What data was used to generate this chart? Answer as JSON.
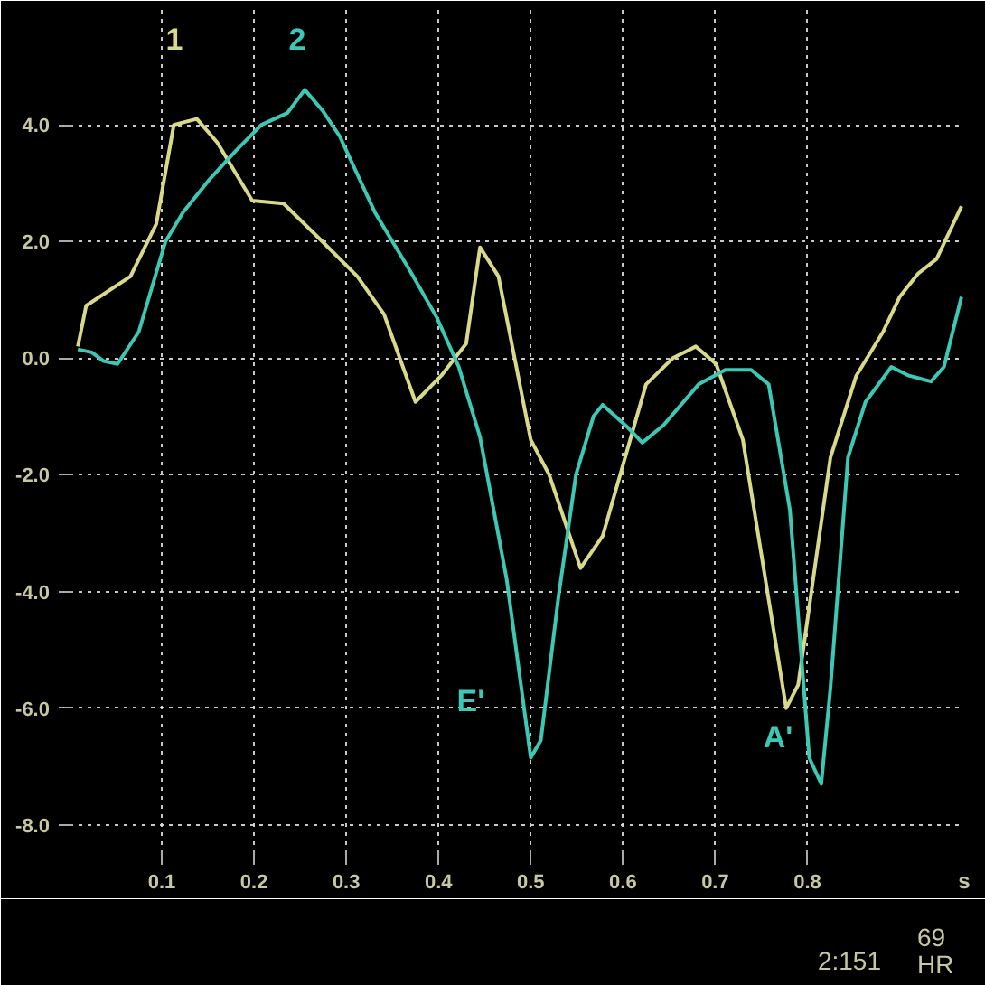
{
  "chart_data": {
    "type": "line",
    "xlabel": "s",
    "xlim": [
      0,
      0.97
    ],
    "ylim": [
      -8.5,
      6
    ],
    "xticks": [
      0.1,
      0.2,
      0.3,
      0.4,
      0.5,
      0.6,
      0.7,
      0.8
    ],
    "yticks": [
      {
        "value": 4,
        "label": "4.0"
      },
      {
        "value": 2,
        "label": "2.0"
      },
      {
        "value": 0,
        "label": "0.0"
      },
      {
        "value": -2,
        "label": "-2.0"
      },
      {
        "value": -4,
        "label": "-4.0"
      },
      {
        "value": -6,
        "label": "-6.0"
      },
      {
        "value": -8,
        "label": "-8.0"
      }
    ],
    "grid": true,
    "line_style": "solid",
    "series": [
      {
        "color": "#d9d98a",
        "x": [
          0.009,
          0.018,
          0.066,
          0.094,
          0.113,
          0.138,
          0.16,
          0.198,
          0.232,
          0.274,
          0.312,
          0.341,
          0.375,
          0.403,
          0.43,
          0.445,
          0.465,
          0.5,
          0.52,
          0.554,
          0.578,
          0.625,
          0.654,
          0.679,
          0.701,
          0.73,
          0.777,
          0.79,
          0.825,
          0.853,
          0.882,
          0.9,
          0.92,
          0.94,
          0.967
        ],
        "values": [
          0.2,
          0.9,
          1.4,
          2.3,
          4.0,
          4.1,
          3.7,
          2.7,
          2.65,
          2.0,
          1.4,
          0.75,
          -0.75,
          -0.3,
          0.25,
          1.9,
          1.4,
          -1.4,
          -2.0,
          -3.6,
          -3.05,
          -0.45,
          0.0,
          0.2,
          -0.1,
          -1.4,
          -6.0,
          -5.6,
          -1.7,
          -0.3,
          0.45,
          1.05,
          1.45,
          1.7,
          2.6
        ]
      },
      {
        "color": "#3cc8b4",
        "x": [
          0.009,
          0.024,
          0.037,
          0.052,
          0.075,
          0.104,
          0.123,
          0.151,
          0.18,
          0.208,
          0.236,
          0.255,
          0.274,
          0.293,
          0.331,
          0.369,
          0.398,
          0.422,
          0.445,
          0.474,
          0.5,
          0.511,
          0.53,
          0.549,
          0.568,
          0.578,
          0.606,
          0.621,
          0.644,
          0.682,
          0.711,
          0.739,
          0.758,
          0.781,
          0.802,
          0.815,
          0.825,
          0.844,
          0.863,
          0.891,
          0.91,
          0.934,
          0.948,
          0.967
        ],
        "values": [
          0.15,
          0.1,
          -0.05,
          -0.1,
          0.45,
          2.0,
          2.5,
          3.05,
          3.55,
          4.0,
          4.2,
          4.6,
          4.25,
          3.8,
          2.5,
          1.5,
          0.7,
          -0.15,
          -1.35,
          -3.8,
          -6.85,
          -6.55,
          -4.1,
          -2.0,
          -1.0,
          -0.8,
          -1.2,
          -1.45,
          -1.15,
          -0.45,
          -0.2,
          -0.2,
          -0.45,
          -2.6,
          -6.85,
          -7.3,
          -5.65,
          -1.7,
          -0.75,
          -0.15,
          -0.3,
          -0.4,
          -0.15,
          1.05
        ]
      }
    ],
    "annotations": [
      "1",
      "2",
      "E'",
      "A'",
      "2:151",
      "69",
      "HR"
    ]
  }
}
